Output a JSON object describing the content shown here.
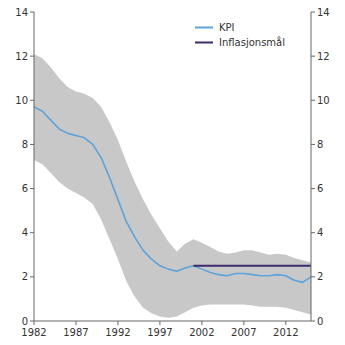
{
  "chart_data": {
    "type": "line",
    "x": [
      1982,
      1983,
      1984,
      1985,
      1986,
      1987,
      1988,
      1989,
      1990,
      1991,
      1992,
      1993,
      1994,
      1995,
      1996,
      1997,
      1998,
      1999,
      2000,
      2001,
      2002,
      2003,
      2004,
      2005,
      2006,
      2007,
      2008,
      2009,
      2010,
      2011,
      2012,
      2013,
      2014,
      2015
    ],
    "series": [
      {
        "type": "area",
        "color": "#c8c8c8",
        "lower": [
          7.3,
          7.1,
          6.7,
          6.3,
          6.0,
          5.8,
          5.6,
          5.3,
          4.6,
          3.7,
          2.8,
          1.8,
          1.1,
          0.6,
          0.35,
          0.2,
          0.15,
          0.2,
          0.4,
          0.6,
          0.7,
          0.75,
          0.75,
          0.75,
          0.75,
          0.75,
          0.7,
          0.65,
          0.65,
          0.65,
          0.6,
          0.5,
          0.4,
          0.3
        ],
        "upper": [
          12.1,
          11.9,
          11.5,
          11.0,
          10.6,
          10.4,
          10.3,
          10.1,
          9.7,
          9.0,
          8.2,
          7.2,
          6.3,
          5.5,
          4.8,
          4.2,
          3.6,
          3.15,
          3.5,
          3.7,
          3.55,
          3.35,
          3.15,
          3.05,
          3.1,
          3.2,
          3.2,
          3.1,
          3.0,
          3.05,
          3.0,
          2.85,
          2.75,
          2.65
        ]
      },
      {
        "name": "KPI",
        "type": "line",
        "color": "#5ba3d9",
        "values": [
          9.7,
          9.5,
          9.1,
          8.7,
          8.5,
          8.4,
          8.3,
          8.0,
          7.4,
          6.5,
          5.5,
          4.5,
          3.8,
          3.2,
          2.8,
          2.5,
          2.35,
          2.25,
          2.4,
          2.5,
          2.35,
          2.2,
          2.1,
          2.05,
          2.15,
          2.15,
          2.1,
          2.05,
          2.05,
          2.1,
          2.05,
          1.85,
          1.75,
          2.0
        ]
      },
      {
        "name": "Inflasjonsmål",
        "type": "line",
        "color": "#3d2b6e",
        "x": [
          2001,
          2015
        ],
        "values": [
          2.5,
          2.5
        ]
      }
    ],
    "xlim": [
      1982,
      2015
    ],
    "xticks": [
      1982,
      1987,
      1992,
      1997,
      2002,
      2007,
      2012
    ],
    "ylim": [
      0,
      14
    ],
    "yticks": [
      0,
      2,
      4,
      6,
      8,
      10,
      12,
      14
    ],
    "y2lim": [
      0,
      14
    ],
    "y2ticks": [
      0,
      2,
      4,
      6,
      8,
      10,
      12,
      14
    ],
    "grid": false,
    "legend": "upper right"
  }
}
